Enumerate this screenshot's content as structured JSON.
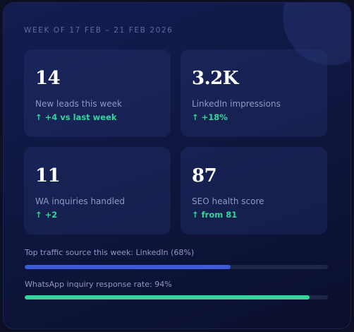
{
  "header": {
    "week_label": "WEEK OF 17 FEB – 21 FEB 2026"
  },
  "cards": [
    {
      "value": "14",
      "label": "New leads this week",
      "delta": "↑ +4 vs last week"
    },
    {
      "value": "3.2K",
      "label": "LinkedIn impressions",
      "delta": "↑ +18%"
    },
    {
      "value": "11",
      "label": "WA inquiries handled",
      "delta": "↑ +2"
    },
    {
      "value": "87",
      "label": "SEO health score",
      "delta": "↑ from 81"
    }
  ],
  "bars": [
    {
      "label": "Top traffic source this week: LinkedIn (68%)",
      "fraction": 0.68,
      "color": "#3d5bd9"
    },
    {
      "label": "WhatsApp inquiry response rate: 94%",
      "fraction": 0.94,
      "color": "#33d69a"
    }
  ],
  "colors": {
    "accent_green": "#33d69a",
    "accent_blue": "#3d5bd9"
  }
}
